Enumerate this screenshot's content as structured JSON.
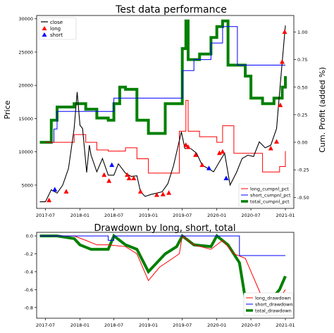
{
  "chart_data": [
    {
      "type": "line",
      "title": "Test data performance",
      "xlabel": "",
      "ylabel": "Price",
      "y2label": "Cum. Profit (added %)",
      "x_ticks": [
        "2017-07",
        "2018-01",
        "2018-07",
        "2019-01",
        "2019-07",
        "2020-01",
        "2020-07",
        "2021-01"
      ],
      "ylim": [
        1500,
        30500
      ],
      "y_ticks": [
        5000,
        10000,
        15000,
        20000,
        25000,
        30000
      ],
      "y2lim": [
        -0.6,
        1.15
      ],
      "y2_ticks": [
        "-0.50",
        "-0.25",
        "0.00",
        "0.25",
        "0.50",
        "0.75",
        "1.00"
      ],
      "y2_tick_values": [
        -0.5,
        -0.25,
        0.0,
        0.25,
        0.5,
        0.75,
        1.0
      ],
      "grid": false,
      "legend_left": {
        "placement": "top-left",
        "entries": [
          "close",
          "long",
          "short"
        ]
      },
      "legend_right": {
        "placement": "bottom-right",
        "entries": [
          "long_cumpnl_pct",
          "short_cumpnl_pct",
          "total_cumpnl_pct"
        ]
      },
      "colors": {
        "close": "#000000",
        "long": "#ff0000",
        "short": "#0000ff",
        "total": "#008000"
      },
      "series": [
        {
          "name": "close",
          "axis": "left",
          "x": [
            "2017-06-01",
            "2017-07-01",
            "2017-08-01",
            "2017-09-01",
            "2017-10-01",
            "2017-11-01",
            "2017-12-01",
            "2017-12-17",
            "2018-01-01",
            "2018-01-15",
            "2018-02-06",
            "2018-02-20",
            "2018-03-01",
            "2018-04-01",
            "2018-05-01",
            "2018-06-01",
            "2018-07-01",
            "2018-07-25",
            "2018-09-01",
            "2018-10-01",
            "2018-11-01",
            "2018-11-20",
            "2018-12-15",
            "2019-01-15",
            "2019-02-15",
            "2019-03-15",
            "2019-04-15",
            "2019-05-15",
            "2019-06-26",
            "2019-07-15",
            "2019-08-15",
            "2019-09-15",
            "2019-10-15",
            "2019-11-15",
            "2019-12-15",
            "2020-01-15",
            "2020-02-12",
            "2020-03-12",
            "2020-04-15",
            "2020-05-15",
            "2020-06-15",
            "2020-07-15",
            "2020-08-15",
            "2020-09-15",
            "2020-10-15",
            "2020-11-15",
            "2020-12-01",
            "2020-12-15",
            "2021-01-01"
          ],
          "values": [
            2500,
            2500,
            4300,
            3800,
            5000,
            7500,
            13500,
            19000,
            14000,
            13500,
            6900,
            11000,
            9500,
            7000,
            9000,
            6500,
            6500,
            8200,
            6800,
            6300,
            6400,
            4000,
            3300,
            3600,
            3800,
            4000,
            5200,
            7900,
            13000,
            10500,
            10500,
            9800,
            8000,
            7500,
            7000,
            8500,
            9800,
            5000,
            6900,
            9000,
            9500,
            9300,
            11500,
            10600,
            11000,
            13500,
            19000,
            23500,
            29000
          ]
        },
        {
          "name": "long",
          "axis": "left",
          "type": "scatter",
          "x": [
            "2017-07-20",
            "2017-10-20",
            "2018-05-10",
            "2018-06-05",
            "2018-09-10",
            "2018-09-20",
            "2018-10-15",
            "2018-11-20",
            "2019-02-15",
            "2019-03-20",
            "2019-04-20",
            "2019-07-20",
            "2019-08-01",
            "2019-09-10",
            "2019-10-15",
            "2020-01-15",
            "2020-02-01",
            "2020-10-15",
            "2020-11-15",
            "2020-12-05",
            "2020-12-15",
            "2020-12-28"
          ],
          "values": [
            2700,
            4000,
            6500,
            5600,
            6500,
            6000,
            6000,
            4000,
            3500,
            3600,
            3800,
            11000,
            10700,
            9500,
            8000,
            9800,
            10000,
            10500,
            11500,
            17000,
            23500,
            28000
          ]
        },
        {
          "name": "short",
          "axis": "left",
          "type": "scatter",
          "x": [
            "2017-08-20",
            "2018-06-20",
            "2019-11-20",
            "2020-02-20"
          ],
          "values": [
            4300,
            8000,
            7500,
            6000
          ]
        },
        {
          "name": "long_cumpnl_pct",
          "axis": "right",
          "x": [
            "2017-07-01",
            "2017-09-01",
            "2017-12-01",
            "2018-02-01",
            "2018-04-01",
            "2018-06-01",
            "2018-09-01",
            "2018-11-01",
            "2019-01-01",
            "2019-04-01",
            "2019-06-15",
            "2019-07-01",
            "2019-07-20",
            "2019-08-01",
            "2019-10-01",
            "2020-01-01",
            "2020-02-01",
            "2020-04-01",
            "2020-07-01",
            "2020-09-01",
            "2020-12-01",
            "2021-01-01"
          ],
          "values": [
            0.0,
            0.0,
            0.07,
            0.0,
            -0.07,
            -0.08,
            -0.05,
            -0.15,
            -0.28,
            -0.28,
            0.1,
            0.1,
            0.38,
            0.1,
            0.05,
            0.0,
            0.15,
            -0.1,
            -0.1,
            -0.27,
            -0.22,
            -0.08
          ]
        },
        {
          "name": "short_cumpnl_pct",
          "axis": "right",
          "x": [
            "2017-07-01",
            "2017-08-15",
            "2017-09-01",
            "2017-12-01",
            "2018-06-01",
            "2018-07-01",
            "2018-09-01",
            "2019-06-01",
            "2019-07-01",
            "2019-09-01",
            "2019-12-01",
            "2020-02-01",
            "2020-04-01",
            "2020-04-20",
            "2020-05-01",
            "2021-01-01"
          ],
          "values": [
            0.0,
            0.12,
            0.28,
            0.28,
            0.28,
            0.4,
            0.4,
            0.4,
            0.65,
            0.75,
            0.9,
            1.05,
            1.05,
            0.7,
            0.7,
            0.7
          ]
        },
        {
          "name": "total_cumpnl_pct",
          "axis": "right",
          "x": [
            "2017-06-01",
            "2017-07-01",
            "2017-08-01",
            "2017-09-01",
            "2017-12-01",
            "2018-02-01",
            "2018-04-01",
            "2018-06-01",
            "2018-07-01",
            "2018-08-01",
            "2018-09-01",
            "2018-11-01",
            "2019-01-01",
            "2019-04-01",
            "2019-07-01",
            "2019-07-20",
            "2019-08-01",
            "2019-10-01",
            "2019-12-01",
            "2020-01-01",
            "2020-02-01",
            "2020-03-01",
            "2020-06-01",
            "2020-07-01",
            "2020-09-01",
            "2020-11-01",
            "2020-12-15",
            "2021-01-01"
          ],
          "values": [
            0.0,
            0.0,
            0.2,
            0.32,
            0.35,
            0.3,
            0.22,
            0.2,
            0.35,
            0.5,
            0.48,
            0.2,
            0.08,
            0.35,
            0.85,
            1.1,
            0.75,
            0.8,
            0.95,
            1.05,
            1.1,
            0.7,
            0.6,
            0.4,
            0.35,
            0.4,
            0.5,
            0.6
          ]
        }
      ]
    },
    {
      "type": "line",
      "title": "Drawdown by long, short, total",
      "xlabel": "",
      "ylabel": "",
      "x_ticks": [
        "2017-07",
        "2018-01",
        "2018-07",
        "2019-01",
        "2019-07",
        "2020-01",
        "2020-07",
        "2021-01"
      ],
      "ylim": [
        -0.92,
        0.04
      ],
      "y_ticks": [
        "0.0",
        "-0.2",
        "-0.4",
        "-0.6",
        "-0.8"
      ],
      "y_tick_values": [
        0.0,
        -0.2,
        -0.4,
        -0.6,
        -0.8
      ],
      "grid": false,
      "legend": {
        "placement": "bottom-right",
        "entries": [
          "long_drawdown",
          "short_drawdown",
          "total_drawdown"
        ]
      },
      "colors": {
        "long": "#ff0000",
        "short": "#0000ff",
        "total": "#008000"
      },
      "series": [
        {
          "name": "long_drawdown",
          "x": [
            "2017-06-01",
            "2017-09-01",
            "2017-12-01",
            "2018-02-01",
            "2018-04-01",
            "2018-06-01",
            "2018-09-01",
            "2018-11-01",
            "2019-01-01",
            "2019-03-01",
            "2019-06-15",
            "2019-07-01",
            "2019-09-01",
            "2019-12-01",
            "2020-02-01",
            "2020-04-01",
            "2020-06-01",
            "2020-09-01",
            "2020-11-01",
            "2020-12-01",
            "2021-01-01"
          ],
          "values": [
            0.0,
            0.0,
            0.0,
            -0.05,
            -0.1,
            -0.1,
            -0.12,
            -0.2,
            -0.5,
            -0.35,
            -0.2,
            0.0,
            -0.1,
            -0.15,
            -0.05,
            -0.2,
            -0.25,
            -0.7,
            -0.8,
            -0.7,
            -0.6
          ]
        },
        {
          "name": "short_drawdown",
          "x": [
            "2017-06-01",
            "2018-05-01",
            "2018-06-01",
            "2018-07-01",
            "2018-09-01",
            "2019-06-01",
            "2019-10-01",
            "2020-04-01",
            "2020-05-01",
            "2020-05-15",
            "2021-01-01"
          ],
          "values": [
            0.0,
            0.0,
            -0.05,
            0.0,
            0.0,
            0.0,
            0.0,
            0.0,
            -0.22,
            -0.22,
            -0.22
          ]
        },
        {
          "name": "total_drawdown",
          "x": [
            "2017-06-01",
            "2017-09-01",
            "2017-12-01",
            "2018-01-01",
            "2018-03-01",
            "2018-06-01",
            "2018-07-01",
            "2018-09-01",
            "2018-11-01",
            "2019-01-01",
            "2019-04-01",
            "2019-06-01",
            "2019-07-01",
            "2019-09-01",
            "2019-12-01",
            "2020-01-01",
            "2020-03-01",
            "2020-05-01",
            "2020-06-01",
            "2020-08-01",
            "2020-10-01",
            "2020-12-01",
            "2021-01-01"
          ],
          "values": [
            0.0,
            0.0,
            -0.03,
            -0.1,
            -0.15,
            -0.15,
            0.0,
            -0.1,
            -0.15,
            -0.4,
            -0.2,
            -0.12,
            0.0,
            -0.1,
            -0.12,
            0.0,
            -0.1,
            -0.3,
            -0.7,
            -0.85,
            -0.75,
            -0.6,
            -0.45
          ]
        }
      ]
    }
  ]
}
